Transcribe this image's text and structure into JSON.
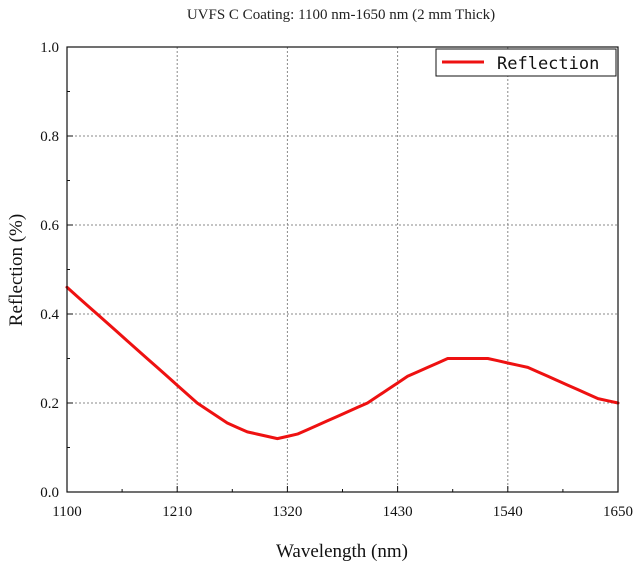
{
  "chart_data": {
    "type": "line",
    "title": "UVFS C Coating: 1100 nm-1650 nm (2 mm Thick)",
    "xlabel": "Wavelength (nm)",
    "ylabel": "Reflection (%)",
    "xlim": [
      1100,
      1650
    ],
    "ylim": [
      0.0,
      1.0
    ],
    "xticks": [
      1100,
      1210,
      1320,
      1430,
      1540,
      1650
    ],
    "xtick_labels": [
      "1100",
      "1210",
      "1320",
      "1430",
      "1540",
      "1650"
    ],
    "yticks": [
      0.0,
      0.2,
      0.4,
      0.6,
      0.8,
      1.0
    ],
    "ytick_labels": [
      "0.0",
      "0.2",
      "0.4",
      "0.6",
      "0.8",
      "1.0"
    ],
    "grid": true,
    "legend_position": "top-right",
    "series": [
      {
        "name": "Reflection",
        "color": "#ee1111",
        "x": [
          1100,
          1110,
          1120,
          1130,
          1140,
          1150,
          1160,
          1170,
          1180,
          1190,
          1200,
          1210,
          1220,
          1230,
          1240,
          1250,
          1260,
          1270,
          1280,
          1290,
          1300,
          1310,
          1320,
          1330,
          1340,
          1350,
          1360,
          1370,
          1380,
          1390,
          1400,
          1410,
          1420,
          1430,
          1440,
          1450,
          1460,
          1470,
          1480,
          1490,
          1500,
          1510,
          1520,
          1530,
          1540,
          1550,
          1560,
          1570,
          1580,
          1590,
          1600,
          1610,
          1620,
          1630,
          1640,
          1650
        ],
        "y": [
          0.46,
          0.44,
          0.42,
          0.4,
          0.38,
          0.36,
          0.34,
          0.32,
          0.3,
          0.28,
          0.26,
          0.24,
          0.22,
          0.2,
          0.185,
          0.17,
          0.155,
          0.145,
          0.135,
          0.13,
          0.125,
          0.12,
          0.125,
          0.13,
          0.14,
          0.15,
          0.16,
          0.17,
          0.18,
          0.19,
          0.2,
          0.215,
          0.23,
          0.245,
          0.26,
          0.27,
          0.28,
          0.29,
          0.3,
          0.3,
          0.3,
          0.3,
          0.3,
          0.295,
          0.29,
          0.285,
          0.28,
          0.27,
          0.26,
          0.25,
          0.24,
          0.23,
          0.22,
          0.21,
          0.205,
          0.2
        ]
      }
    ]
  }
}
